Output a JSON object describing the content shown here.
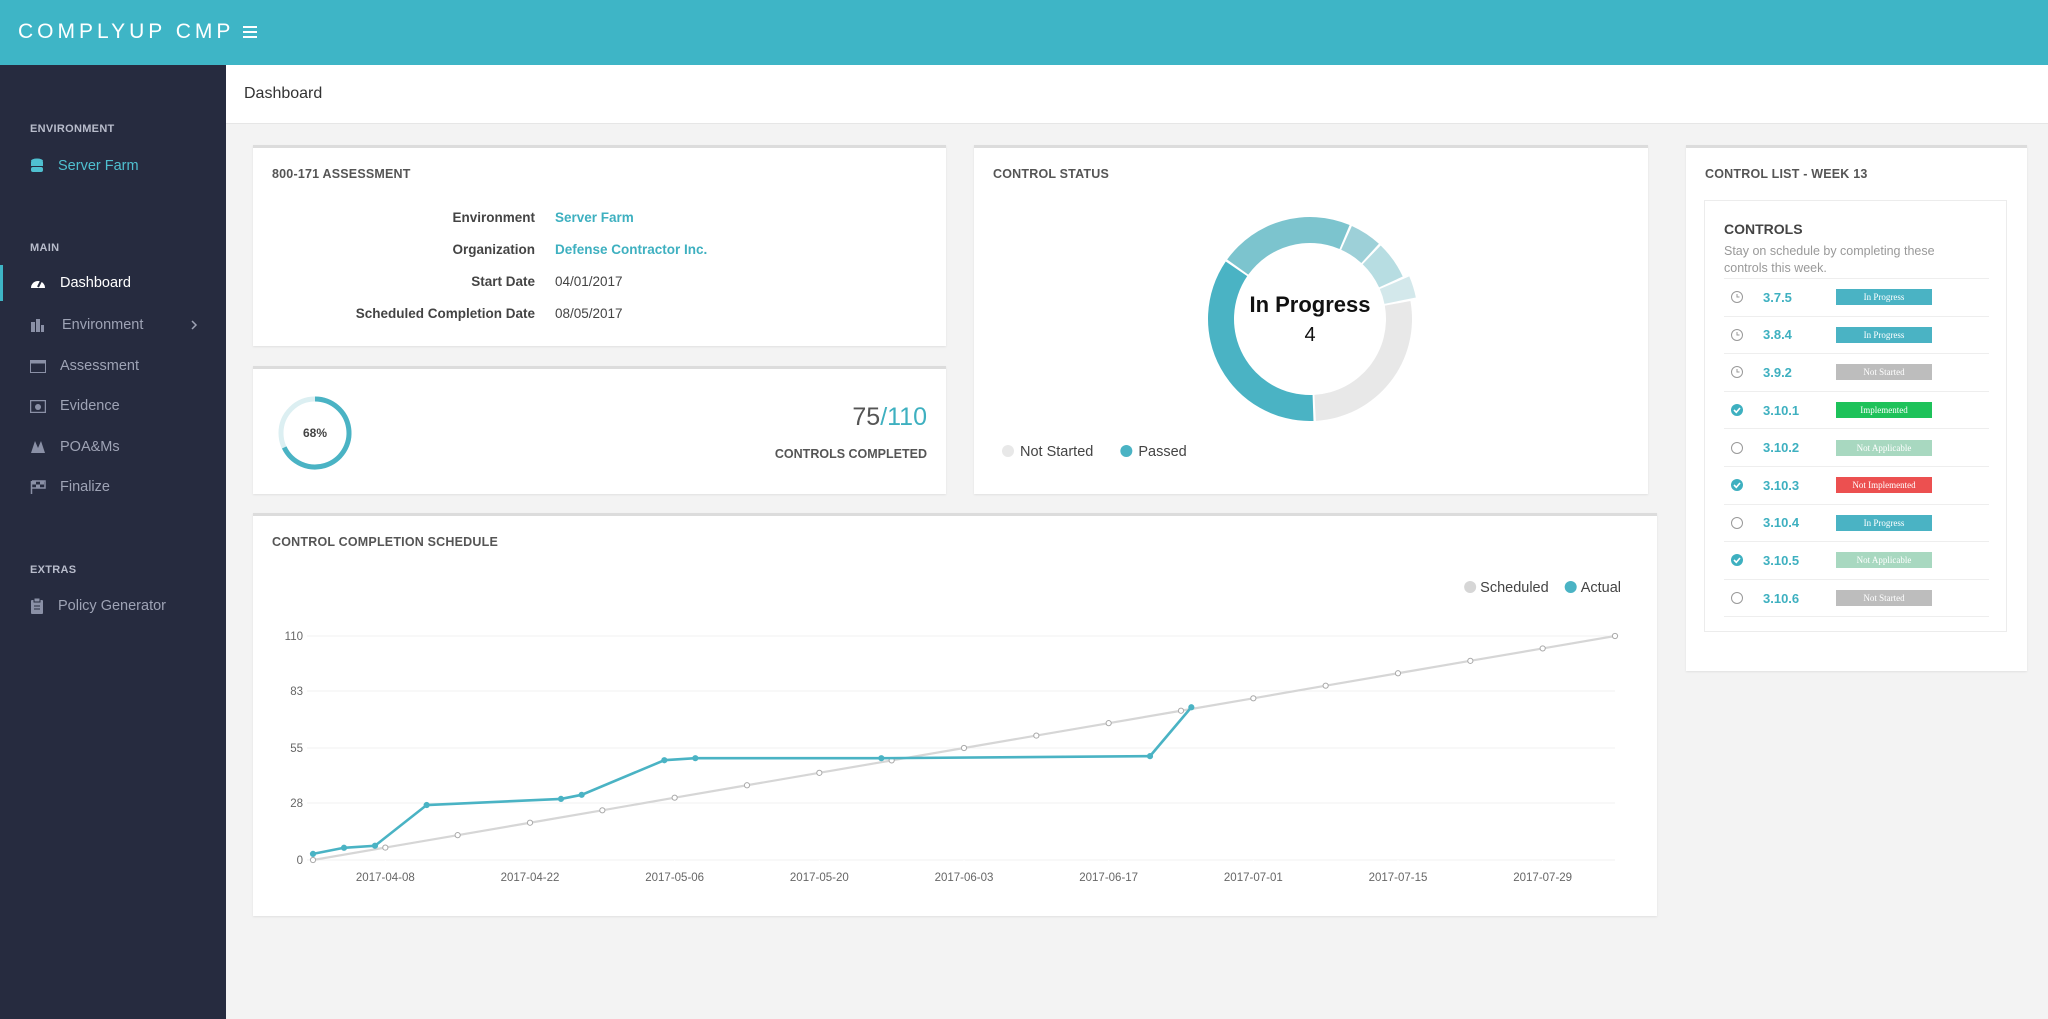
{
  "header": {
    "brand": "COMPLYUP CMP"
  },
  "sidebar": {
    "sections": [
      {
        "title": "ENVIRONMENT",
        "items": [
          "Server Farm"
        ]
      },
      {
        "title": "MAIN",
        "items": [
          "Dashboard",
          "Environment",
          "Assessment",
          "Evidence",
          "POA&Ms",
          "Finalize"
        ]
      },
      {
        "title": "EXTRAS",
        "items": [
          "Policy Generator"
        ]
      }
    ]
  },
  "page": {
    "title": "Dashboard"
  },
  "assessment": {
    "title": "800-171 ASSESSMENT",
    "rows": [
      [
        "Environment",
        "Server Farm"
      ],
      [
        "Organization",
        "Defense Contractor Inc."
      ],
      [
        "Start Date",
        "04/01/2017"
      ],
      [
        "Scheduled Completion Date",
        "08/05/2017"
      ]
    ]
  },
  "completion": {
    "completed": 75,
    "total": {
      "value": 110,
      "label": "/110"
    },
    "label": "CONTROLS COMPLETED"
  },
  "chart_data": [
    {
      "type": "gauge",
      "value": 68,
      "value_label": "68%",
      "color": "#4ab3c4",
      "track_color": "#dceff2"
    },
    {
      "type": "donut",
      "title": "CONTROL STATUS",
      "segments": [
        {
          "name": null,
          "value": 24,
          "color": "#7cc4ce"
        },
        {
          "name": null,
          "value": 6,
          "color": "#9dd0d8"
        },
        {
          "name": null,
          "value": 7,
          "color": "#b7dde2"
        },
        {
          "name": "In Progress",
          "value": 4,
          "color": "#d3e8eb",
          "highlighted": true
        },
        {
          "name": "Not Started",
          "value": 30,
          "color": "#e8e8e8",
          "legend": true
        },
        {
          "name": "Passed",
          "value": 39,
          "color": "#4ab3c4",
          "legend": true
        }
      ]
    },
    {
      "type": "line",
      "title": "CONTROL COMPLETION SCHEDULE",
      "xlim": [
        "2017-04-01",
        "2017-08-05"
      ],
      "xticks": [
        "2017-04-08",
        "2017-04-22",
        "2017-05-06",
        "2017-05-20",
        "2017-06-03",
        "2017-06-17",
        "2017-07-01",
        "2017-07-15",
        "2017-07-29"
      ],
      "ylim": [
        0,
        110
      ],
      "yticks": [
        0,
        28,
        55,
        83,
        110
      ],
      "grid": true,
      "legend": "top-right",
      "series": [
        {
          "name": "Scheduled",
          "color": "#d6d6d6",
          "x": [
            "2017-04-01",
            "2017-04-08",
            "2017-04-15",
            "2017-04-22",
            "2017-04-29",
            "2017-05-06",
            "2017-05-13",
            "2017-05-20",
            "2017-05-27",
            "2017-06-03",
            "2017-06-10",
            "2017-06-17",
            "2017-06-24",
            "2017-07-01",
            "2017-07-08",
            "2017-07-15",
            "2017-07-22",
            "2017-07-29",
            "2017-08-05"
          ],
          "values": [
            0,
            6.1,
            12.2,
            18.3,
            24.4,
            30.6,
            36.7,
            42.8,
            48.9,
            55,
            61.1,
            67.2,
            73.3,
            79.4,
            85.6,
            91.7,
            97.8,
            103.9,
            110
          ]
        },
        {
          "name": "Actual",
          "color": "#4ab3c4",
          "x": [
            "2017-04-01",
            "2017-04-04",
            "2017-04-07",
            "2017-04-12",
            "2017-04-25",
            "2017-04-27",
            "2017-05-05",
            "2017-05-08",
            "2017-05-26",
            "2017-06-21",
            "2017-06-25"
          ],
          "values": [
            3,
            6,
            7,
            27,
            30,
            32,
            49,
            50,
            50,
            51,
            75
          ]
        }
      ]
    }
  ],
  "control_list": {
    "title": "CONTROL LIST - WEEK 13",
    "panel_title": "CONTROLS",
    "description": "Stay on schedule by completing these controls this week.",
    "rows": [
      {
        "status": "pending",
        "id": "3.7.5",
        "badge": "In Progress",
        "badge_color": "#4ab3c4"
      },
      {
        "status": "pending",
        "id": "3.8.4",
        "badge": "In Progress",
        "badge_color": "#4ab3c4"
      },
      {
        "status": "pending",
        "id": "3.9.2",
        "badge": "Not Started",
        "badge_color": "#bdbdbd"
      },
      {
        "status": "done",
        "id": "3.10.1",
        "badge": "Implemented",
        "badge_color": "#1ec25a"
      },
      {
        "status": "open",
        "id": "3.10.2",
        "badge": "Not Applicable",
        "badge_color": "#a8d8c0"
      },
      {
        "status": "done",
        "id": "3.10.3",
        "badge": "Not Implemented",
        "badge_color": "#ec5050"
      },
      {
        "status": "open",
        "id": "3.10.4",
        "badge": "In Progress",
        "badge_color": "#4ab3c4"
      },
      {
        "status": "done",
        "id": "3.10.5",
        "badge": "Not Applicable",
        "badge_color": "#a8d8c0"
      },
      {
        "status": "open",
        "id": "3.10.6",
        "badge": "Not Started",
        "badge_color": "#bdbdbd"
      }
    ]
  }
}
